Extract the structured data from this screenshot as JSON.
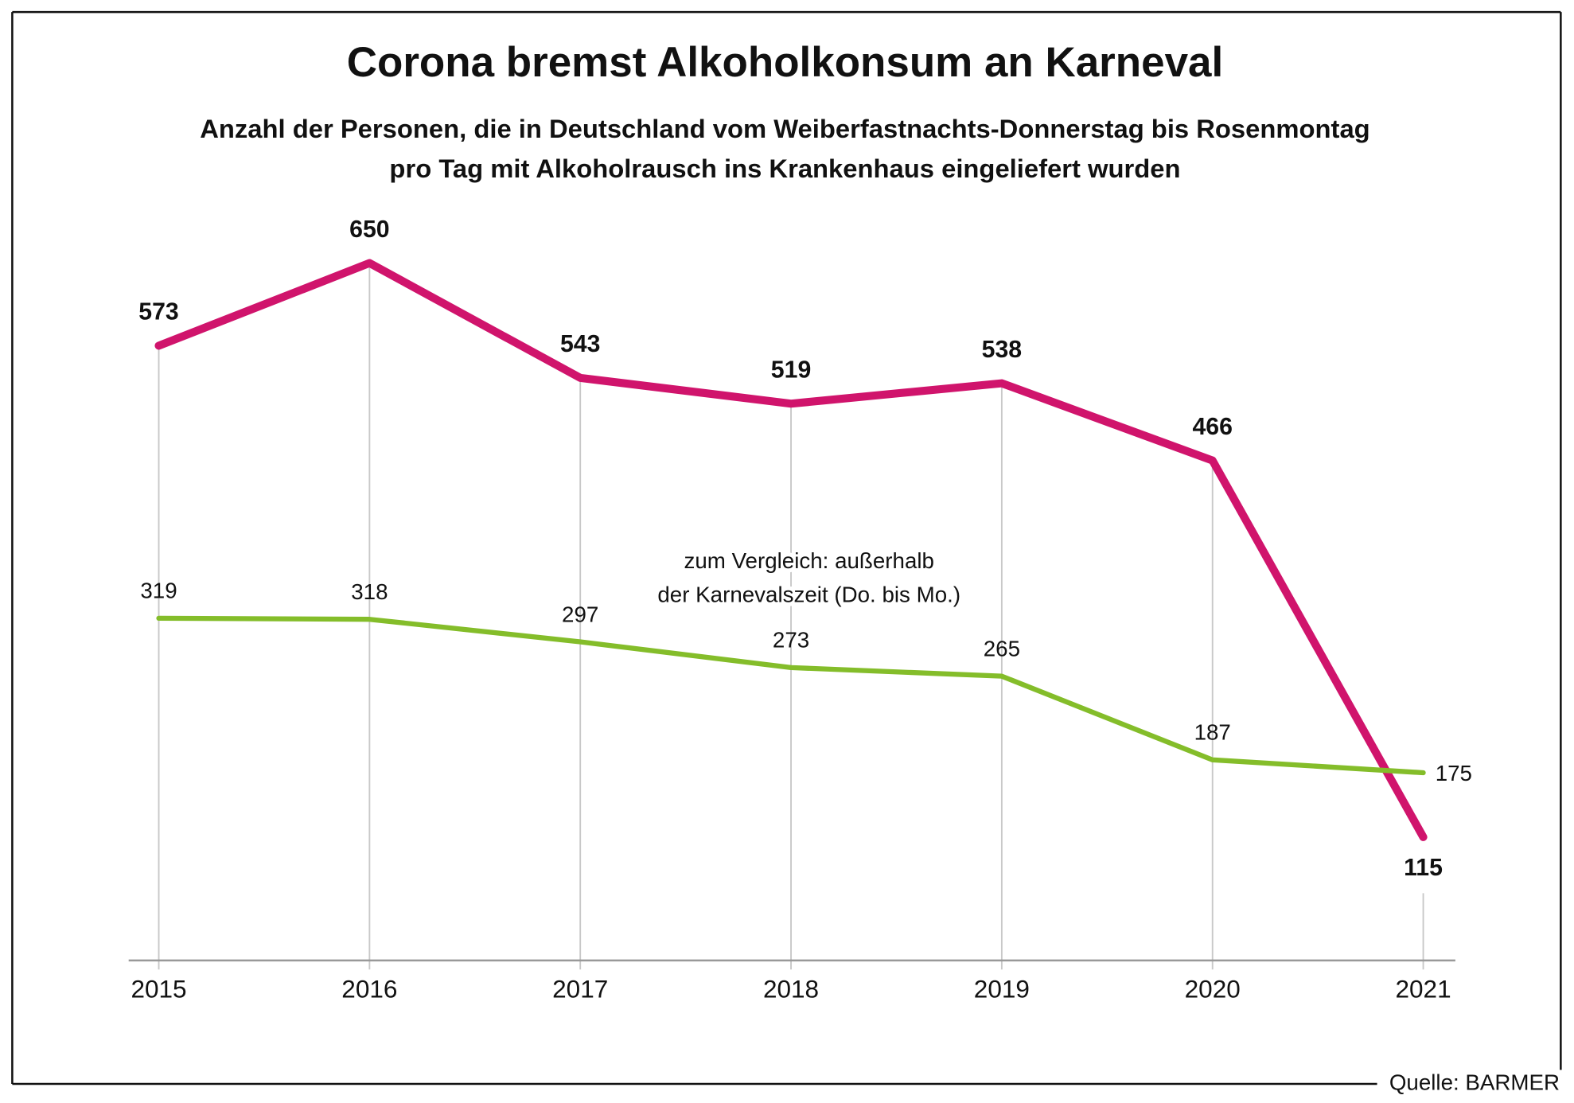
{
  "chart_data": {
    "type": "line",
    "title": "Corona bremst Alkoholkonsum an Karneval",
    "subtitle_lines": [
      "Anzahl der Personen, die in Deutschland vom Weiberfastnachts-Donnerstag bis Rosenmontag",
      "pro Tag mit Alkoholrausch ins Krankenhaus eingeliefert wurden"
    ],
    "categories": [
      "2015",
      "2016",
      "2017",
      "2018",
      "2019",
      "2020",
      "2021"
    ],
    "series": [
      {
        "values": [
          573,
          650,
          543,
          519,
          538,
          466,
          115
        ],
        "color": "#d0146c"
      },
      {
        "values": [
          319,
          318,
          297,
          273,
          265,
          187,
          175
        ],
        "color": "#84bd2a"
      }
    ],
    "annotation_lines": [
      "zum Vergleich: außerhalb",
      "der Karnevalszeit (Do. bis Mo.)"
    ],
    "ylim": [
      0,
      650
    ],
    "grid": "vertical",
    "source": "Quelle: BARMER"
  }
}
